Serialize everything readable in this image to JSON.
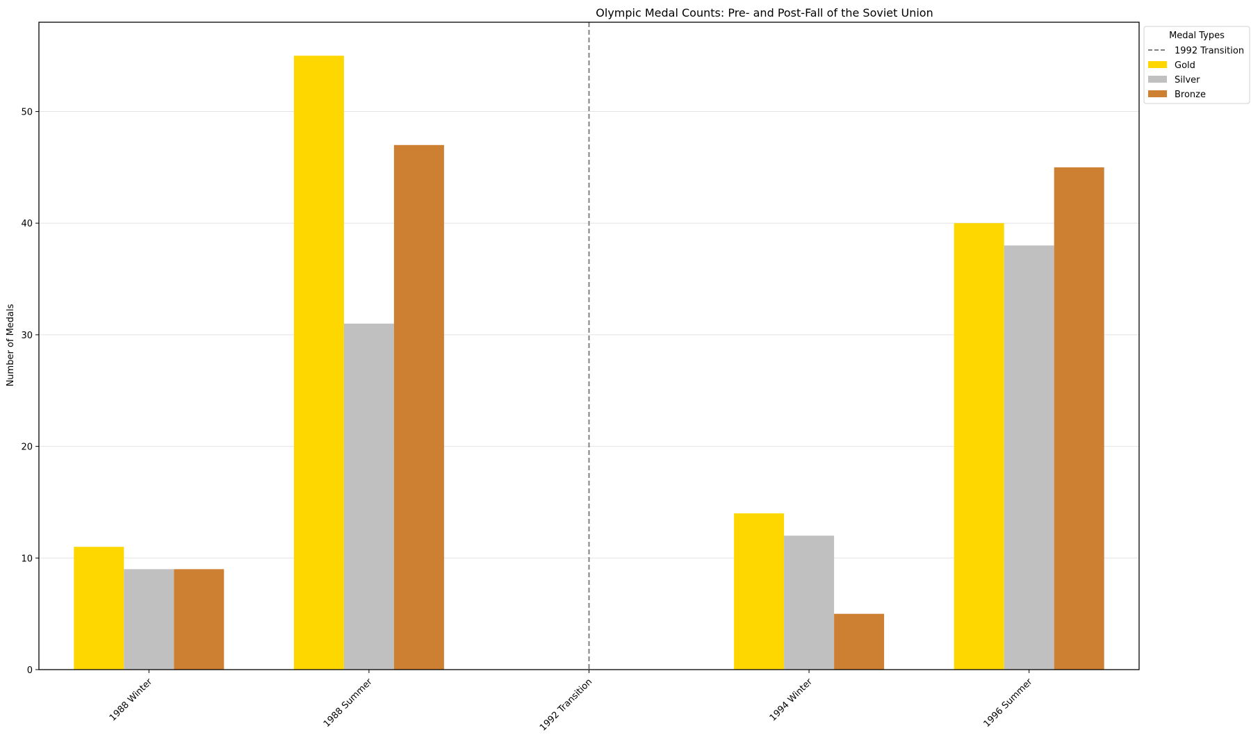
{
  "chart_data": {
    "type": "bar",
    "title": "Olympic Medal Counts: Pre- and Post-Fall of the Soviet Union",
    "xlabel": "",
    "ylabel": "Number of Medals",
    "ylim": [
      0,
      58
    ],
    "yticks": [
      0,
      10,
      20,
      30,
      40,
      50
    ],
    "grid": "horizontal",
    "categories": [
      "1988 Winter",
      "1988 Summer",
      "1992 Transition",
      "1994 Winter",
      "1996 Summer"
    ],
    "series": [
      {
        "name": "Gold",
        "color": "#FFD700",
        "values": [
          11,
          55,
          null,
          14,
          40
        ]
      },
      {
        "name": "Silver",
        "color": "#C0C0C0",
        "values": [
          9,
          31,
          null,
          12,
          38
        ]
      },
      {
        "name": "Bronze",
        "color": "#CD7F32",
        "values": [
          9,
          47,
          null,
          5,
          45
        ]
      }
    ],
    "reference_line": {
      "category": "1992 Transition",
      "label": "1992 Transition",
      "color": "#808080",
      "style": "dashed"
    },
    "legend": {
      "title": "Medal Types",
      "placement": "outside-top-right",
      "entries": [
        "1992 Transition",
        "Gold",
        "Silver",
        "Bronze"
      ]
    }
  }
}
